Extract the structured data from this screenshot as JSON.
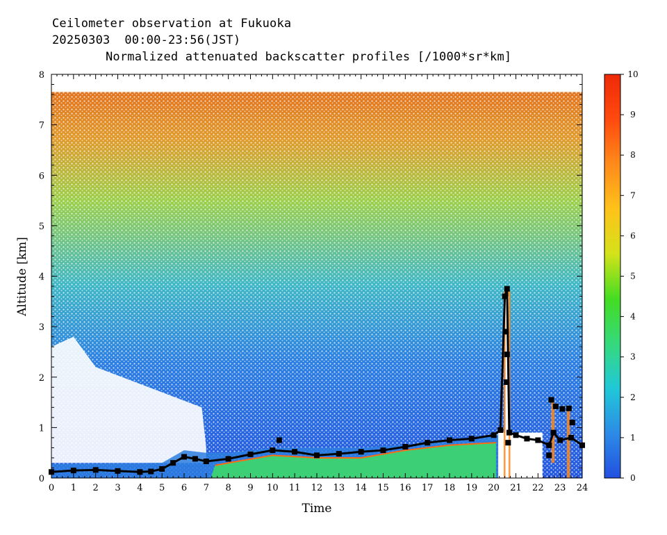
{
  "header": {
    "line1": "Ceilometer observation at Fukuoka",
    "line2": "20250303  00:00-23:56(JST)",
    "line3": "Normalized attenuated backscatter profiles [/1000*sr*km]"
  },
  "chart_data": {
    "type": "heatmap",
    "title": "Normalized attenuated backscatter profiles [/1000*sr*km]",
    "xlabel": "Time",
    "ylabel": "Altitude [km]",
    "xlim": [
      0,
      24
    ],
    "ylim": [
      0,
      8
    ],
    "x_ticks": [
      "0",
      "1",
      "2",
      "3",
      "4",
      "5",
      "6",
      "7",
      "8",
      "9",
      "10",
      "11",
      "12",
      "13",
      "14",
      "15",
      "16",
      "17",
      "18",
      "19",
      "20",
      "21",
      "22",
      "23",
      "24"
    ],
    "y_ticks": [
      "0",
      "1",
      "2",
      "3",
      "4",
      "5",
      "6",
      "7",
      "8"
    ],
    "data_top_altitude_km": 7.65,
    "colorbar": {
      "min": 0,
      "max": 10,
      "ticks": [
        "0",
        "1",
        "2",
        "3",
        "4",
        "5",
        "6",
        "7",
        "8",
        "9",
        "10"
      ],
      "colors": [
        "#2250e0",
        "#2d8be6",
        "#20c8d8",
        "#35d97c",
        "#44dd22",
        "#d4e21a",
        "#ffc21a",
        "#ff8a1a",
        "#ff4a0e",
        "#ee2a08"
      ]
    },
    "cloud_base_series": {
      "name": "",
      "time": [
        0,
        1,
        2,
        3,
        4,
        4.5,
        5,
        5.5,
        6,
        6.5,
        7,
        8,
        9,
        10,
        11,
        12,
        13,
        14,
        15,
        16,
        17,
        18,
        19,
        20,
        20.3,
        20.5,
        20.6,
        20.7,
        21,
        21.5,
        22,
        22.5,
        22.7,
        23,
        23.5,
        24
      ],
      "altitude": [
        0.12,
        0.15,
        0.16,
        0.14,
        0.12,
        0.13,
        0.18,
        0.3,
        0.42,
        0.38,
        0.33,
        0.38,
        0.47,
        0.55,
        0.52,
        0.45,
        0.48,
        0.52,
        0.55,
        0.62,
        0.7,
        0.75,
        0.78,
        0.85,
        0.95,
        3.6,
        3.75,
        0.9,
        0.85,
        0.78,
        0.75,
        0.65,
        0.9,
        0.75,
        0.8,
        0.65
      ]
    },
    "extra_points": {
      "time": [
        20.55,
        20.6,
        20.58,
        20.65,
        22.6,
        22.8,
        23.1,
        23.4,
        23.55,
        10.3,
        22.5
      ],
      "altitude": [
        2.9,
        2.45,
        1.9,
        0.7,
        1.55,
        1.42,
        1.37,
        1.38,
        1.1,
        0.75,
        0.45
      ]
    },
    "grid": false
  }
}
